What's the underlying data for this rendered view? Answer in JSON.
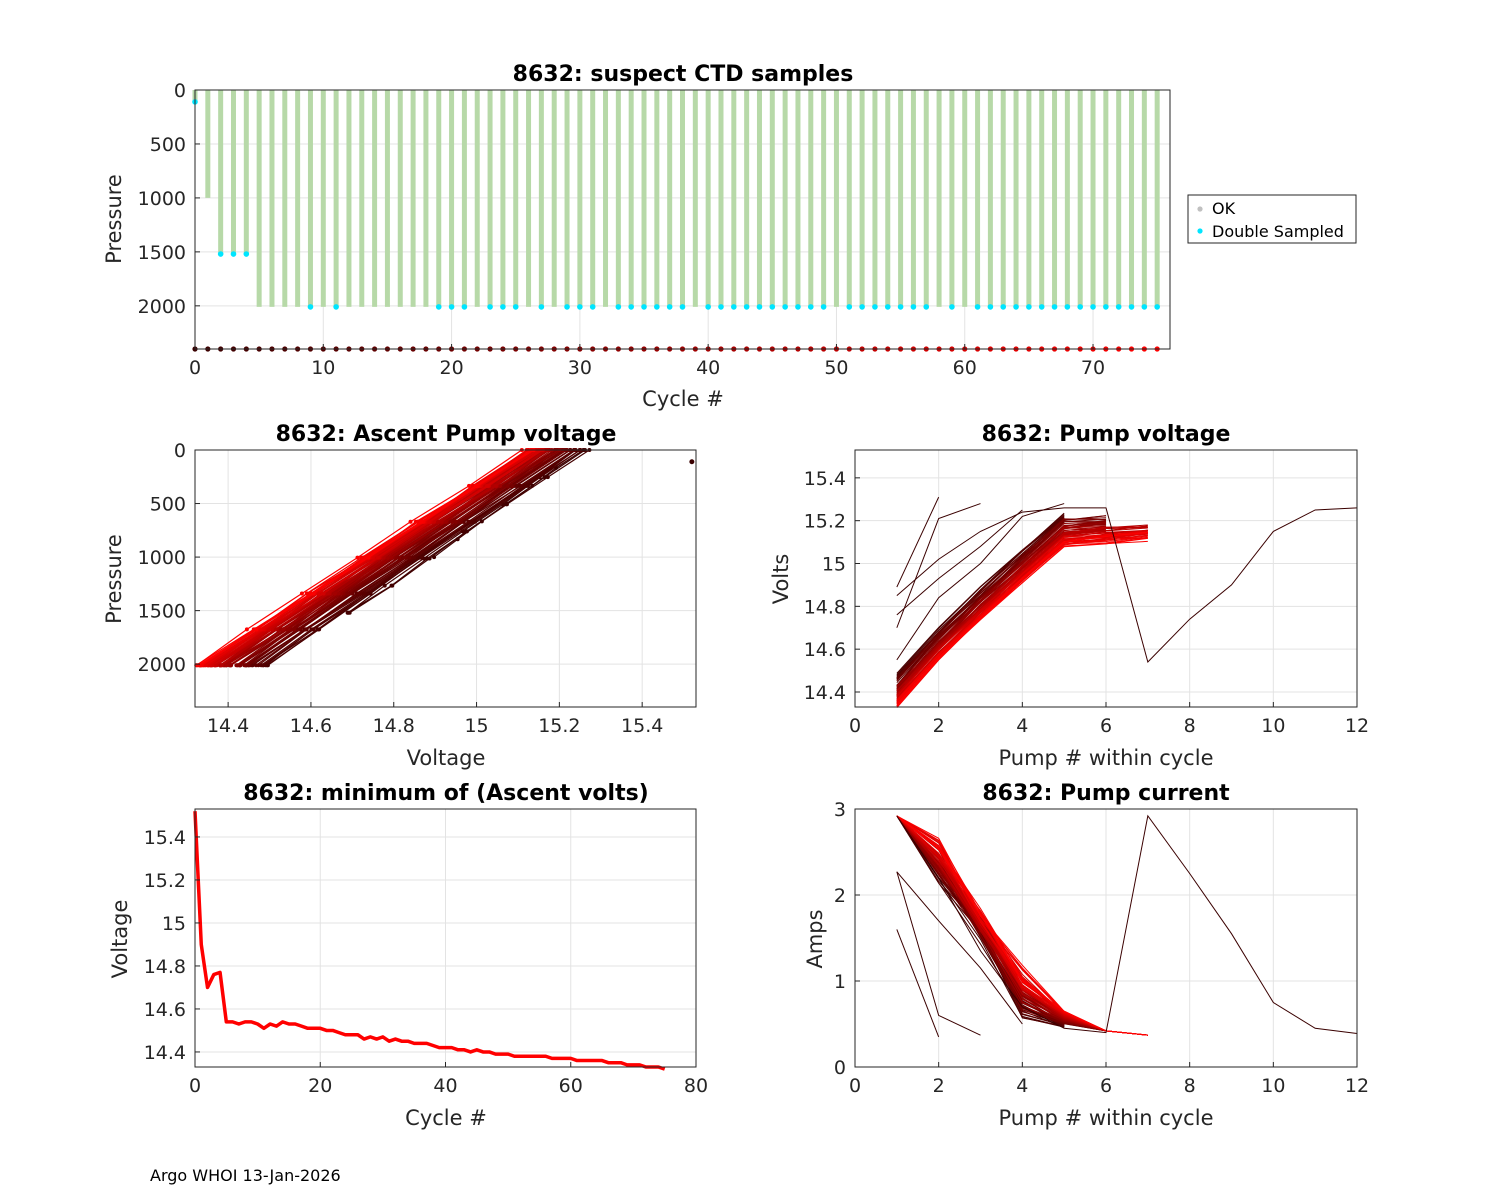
{
  "footer": "Argo WHOI 13-Jan-2026",
  "colors": {
    "ok": "#c0c0c0",
    "double": "#00e5ff",
    "bar": "#b7d9a8",
    "early": "#3a0000",
    "late": "#ff0000",
    "grid": "#e3e3e3"
  },
  "chart_data": [
    {
      "id": "ctd",
      "type": "scatter",
      "title": "8632: suspect CTD samples",
      "xlabel": "Cycle #",
      "ylabel": "Pressure",
      "xlim": [
        0,
        76
      ],
      "ylim": [
        0,
        2400
      ],
      "y_reversed": true,
      "xticks": [
        0,
        10,
        20,
        30,
        40,
        50,
        60,
        70
      ],
      "yticks": [
        0,
        500,
        1000,
        1500,
        2000
      ],
      "legend": {
        "entries": [
          "OK",
          "Double Sampled"
        ],
        "placement": "east-outside"
      },
      "profile_max_pressure": [
        120,
        1000,
        1520,
        1520,
        1520,
        2010,
        2010,
        2010,
        2010,
        2010,
        2010,
        2010,
        2010,
        2010,
        2010,
        2010,
        2010,
        2010,
        2010,
        2010,
        2010,
        2010,
        2010,
        2010,
        2010,
        2010,
        2010,
        2010,
        2010,
        2010,
        2010,
        2010,
        2010,
        2010,
        2010,
        2010,
        2010,
        2010,
        2010,
        2010,
        2010,
        2010,
        2010,
        2010,
        2010,
        2010,
        2010,
        2010,
        2010,
        2010,
        2010,
        2010,
        2010,
        2010,
        2010,
        2010,
        2010,
        2010,
        2010,
        2010,
        2010,
        2010,
        2010,
        2010,
        2010,
        2010,
        2010,
        2010,
        2010,
        2010,
        2010,
        2010,
        2010,
        2010,
        2010,
        2010
      ],
      "double_sampled": [
        [
          0,
          110
        ],
        [
          2,
          1520
        ],
        [
          3,
          1520
        ],
        [
          4,
          1520
        ],
        [
          9,
          2010
        ],
        [
          11,
          2010
        ],
        [
          19,
          2010
        ],
        [
          20,
          2010
        ],
        [
          21,
          2010
        ],
        [
          23,
          2010
        ],
        [
          24,
          2010
        ],
        [
          25,
          2010
        ],
        [
          27,
          2010
        ],
        [
          29,
          2010
        ],
        [
          30,
          2010
        ],
        [
          31,
          2010
        ],
        [
          33,
          2010
        ],
        [
          34,
          2010
        ],
        [
          35,
          2010
        ],
        [
          36,
          2010
        ],
        [
          37,
          2010
        ],
        [
          38,
          2010
        ],
        [
          40,
          2010
        ],
        [
          41,
          2010
        ],
        [
          42,
          2010
        ],
        [
          43,
          2010
        ],
        [
          44,
          2010
        ],
        [
          45,
          2010
        ],
        [
          46,
          2010
        ],
        [
          47,
          2010
        ],
        [
          48,
          2010
        ],
        [
          49,
          2010
        ],
        [
          51,
          2010
        ],
        [
          52,
          2010
        ],
        [
          53,
          2010
        ],
        [
          54,
          2010
        ],
        [
          55,
          2010
        ],
        [
          56,
          2010
        ],
        [
          57,
          2010
        ],
        [
          59,
          2010
        ],
        [
          61,
          2010
        ],
        [
          62,
          2010
        ],
        [
          63,
          2010
        ],
        [
          64,
          2010
        ],
        [
          65,
          2010
        ],
        [
          66,
          2010
        ],
        [
          67,
          2010
        ],
        [
          68,
          2010
        ],
        [
          69,
          2010
        ],
        [
          70,
          2010
        ],
        [
          71,
          2010
        ],
        [
          72,
          2010
        ],
        [
          73,
          2010
        ],
        [
          74,
          2010
        ],
        [
          75,
          2010
        ]
      ],
      "bottom_marker_pressure": 2400
    },
    {
      "id": "ascent",
      "type": "line",
      "title": "8632: Ascent Pump voltage",
      "xlabel": "Voltage",
      "ylabel": "Pressure",
      "xlim": [
        14.32,
        15.53
      ],
      "ylim": [
        0,
        2400
      ],
      "y_reversed": true,
      "xticks": [
        14.4,
        14.6,
        14.8,
        15,
        15.2,
        15.4
      ],
      "xtick_labels": [
        "14.4",
        "14.6",
        "14.8",
        "15",
        "15.2",
        "15.4"
      ],
      "yticks": [
        0,
        500,
        1000,
        1500,
        2000
      ],
      "series_pattern": "one line per cycle 0-75, dark red (early) to bright red (late)",
      "early_start_voltage": [
        14.54,
        14.53,
        14.52,
        14.51
      ],
      "late_start_voltage": [
        14.32,
        14.33
      ],
      "profile_voltage_span": [
        0.78,
        0.82
      ],
      "outlier": {
        "voltage": 15.52,
        "pressure": 110
      }
    },
    {
      "id": "pumpv",
      "type": "line",
      "title": "8632: Pump voltage",
      "xlabel": "Pump # within cycle",
      "ylabel": "Volts",
      "xlim": [
        0,
        12
      ],
      "ylim": [
        14.33,
        15.53
      ],
      "xticks": [
        0,
        2,
        4,
        6,
        8,
        10,
        12
      ],
      "yticks": [
        14.4,
        14.6,
        14.8,
        15,
        15.2,
        15.4
      ],
      "ytick_labels": [
        "14.4",
        "14.6",
        "14.8",
        "15",
        "15.2",
        "15.4"
      ],
      "special_series": [
        {
          "name": "cycle 0",
          "x": [
            1,
            2,
            3,
            4,
            5,
            6,
            7,
            8,
            9,
            10,
            11,
            12
          ],
          "y": [
            14.85,
            15.02,
            15.15,
            15.24,
            15.26,
            15.26,
            14.54,
            14.74,
            14.9,
            15.15,
            15.25,
            15.26
          ]
        },
        {
          "name": "cycle 1",
          "x": [
            1,
            2
          ],
          "y": [
            14.89,
            15.31
          ]
        },
        {
          "name": "cycle 2",
          "x": [
            1,
            2,
            3
          ],
          "y": [
            14.7,
            15.21,
            15.28
          ]
        },
        {
          "name": "cycle 3",
          "x": [
            1,
            2,
            3,
            4
          ],
          "y": [
            14.76,
            14.93,
            15.08,
            15.25
          ]
        },
        {
          "name": "cycle 4",
          "x": [
            1,
            2,
            3,
            4,
            5
          ],
          "y": [
            14.55,
            14.84,
            15.0,
            15.22,
            15.28
          ]
        }
      ],
      "bundle": {
        "pump_counts": [
          5,
          6,
          7
        ],
        "start_range": [
          14.52,
          14.33
        ],
        "end_range": [
          15.27,
          15.06
        ]
      }
    },
    {
      "id": "minv",
      "type": "line",
      "title": "8632: minimum of (Ascent volts)",
      "xlabel": "Cycle #",
      "ylabel": "Voltage",
      "xlim": [
        0,
        80
      ],
      "ylim": [
        14.33,
        15.53
      ],
      "xticks": [
        0,
        20,
        40,
        60,
        80
      ],
      "yticks": [
        14.4,
        14.6,
        14.8,
        15,
        15.2,
        15.4
      ],
      "ytick_labels": [
        "14.4",
        "14.6",
        "14.8",
        "15",
        "15.2",
        "15.4"
      ],
      "x": [
        0,
        1,
        2,
        3,
        4,
        5,
        6,
        7,
        8,
        9,
        10,
        11,
        12,
        13,
        14,
        15,
        16,
        17,
        18,
        19,
        20,
        21,
        22,
        23,
        24,
        25,
        26,
        27,
        28,
        29,
        30,
        31,
        32,
        33,
        34,
        35,
        36,
        37,
        38,
        39,
        40,
        41,
        42,
        43,
        44,
        45,
        46,
        47,
        48,
        49,
        50,
        51,
        52,
        53,
        54,
        55,
        56,
        57,
        58,
        59,
        60,
        61,
        62,
        63,
        64,
        65,
        66,
        67,
        68,
        69,
        70,
        71,
        72,
        73,
        74,
        75
      ],
      "values": [
        15.52,
        14.9,
        14.7,
        14.76,
        14.77,
        14.54,
        14.54,
        14.53,
        14.54,
        14.54,
        14.53,
        14.51,
        14.53,
        14.52,
        14.54,
        14.53,
        14.53,
        14.52,
        14.51,
        14.51,
        14.51,
        14.5,
        14.5,
        14.49,
        14.48,
        14.48,
        14.48,
        14.46,
        14.47,
        14.46,
        14.47,
        14.45,
        14.46,
        14.45,
        14.45,
        14.44,
        14.44,
        14.44,
        14.43,
        14.42,
        14.42,
        14.42,
        14.41,
        14.41,
        14.4,
        14.41,
        14.4,
        14.4,
        14.39,
        14.39,
        14.39,
        14.38,
        14.38,
        14.38,
        14.38,
        14.38,
        14.38,
        14.37,
        14.37,
        14.37,
        14.37,
        14.36,
        14.36,
        14.36,
        14.36,
        14.36,
        14.35,
        14.35,
        14.35,
        14.34,
        14.34,
        14.34,
        14.33,
        14.33,
        14.33,
        14.32
      ]
    },
    {
      "id": "pumpc",
      "type": "line",
      "title": "8632: Pump current",
      "xlabel": "Pump # within cycle",
      "ylabel": "Amps",
      "xlim": [
        0,
        12
      ],
      "ylim": [
        0,
        3
      ],
      "xticks": [
        0,
        2,
        4,
        6,
        8,
        10,
        12
      ],
      "yticks": [
        0,
        1,
        2,
        3
      ],
      "special_series": [
        {
          "name": "cycle 0",
          "x": [
            1,
            2,
            3,
            4,
            5,
            6,
            7,
            8,
            9,
            10,
            11,
            12
          ],
          "y": [
            2.92,
            2.2,
            1.35,
            0.7,
            0.45,
            0.4,
            2.92,
            2.25,
            1.55,
            0.75,
            0.45,
            0.39
          ]
        },
        {
          "name": "cycle 1",
          "x": [
            1,
            2
          ],
          "y": [
            1.6,
            0.35
          ]
        },
        {
          "name": "cycle 2",
          "x": [
            1,
            2,
            3
          ],
          "y": [
            2.27,
            0.6,
            0.37
          ]
        },
        {
          "name": "cycle 3",
          "x": [
            1,
            2,
            3,
            4
          ],
          "y": [
            2.27,
            1.7,
            1.15,
            0.5
          ]
        }
      ],
      "bundle": {
        "pump_counts": [
          5,
          6,
          7
        ],
        "start": 2.92,
        "end": [
          0.37,
          0.45
        ]
      }
    }
  ]
}
